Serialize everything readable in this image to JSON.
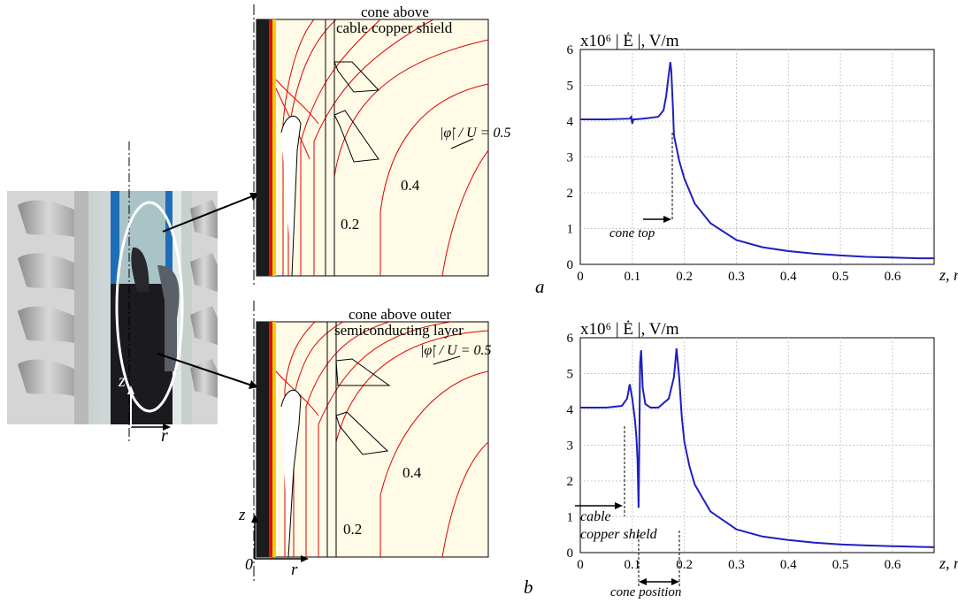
{
  "cable_photo": {
    "axis_z": "z",
    "axis_r": "r"
  },
  "field_plots": {
    "top": {
      "title_line1": "cone above",
      "title_line2": "cable copper shield",
      "phi_label": "|φ̇| / U = 0.5",
      "contour_04": "0.4",
      "contour_02": "0.2"
    },
    "bottom": {
      "title_line1": "cone above outer",
      "title_line2": "semiconducting layer",
      "phi_label": "|φ̇| / U = 0.5",
      "contour_04": "0.4",
      "contour_02": "0.2",
      "axis_z": "z",
      "axis_r": "r",
      "origin": "0"
    }
  },
  "panel_labels": {
    "a": "a",
    "b": "b"
  },
  "chart_data": [
    {
      "type": "line",
      "title": "x10⁶ | Ė |, V/m",
      "xlabel": "z, m",
      "xlim": [
        0,
        0.68
      ],
      "ylim": [
        0,
        6
      ],
      "xticks": [
        "0",
        "0.1",
        "0.2",
        "0.3",
        "0.4",
        "0.5",
        "0.6"
      ],
      "yticks": [
        "0",
        "1",
        "2",
        "3",
        "4",
        "5",
        "6"
      ],
      "grid": true,
      "color": "#1f1fbf",
      "annotations": [
        "cone top"
      ],
      "series": [
        {
          "x": [
            0,
            0.05,
            0.095,
            0.098,
            0.1,
            0.102,
            0.105,
            0.12,
            0.15,
            0.16,
            0.165,
            0.17,
            0.173,
            0.175,
            0.178,
            0.18,
            0.19,
            0.2,
            0.22,
            0.25,
            0.3,
            0.35,
            0.4,
            0.45,
            0.5,
            0.55,
            0.6,
            0.65,
            0.68
          ],
          "y": [
            4.05,
            4.05,
            4.07,
            4.12,
            3.93,
            4.05,
            4.05,
            4.07,
            4.12,
            4.3,
            4.7,
            5.3,
            5.65,
            5.4,
            4.4,
            3.6,
            2.9,
            2.4,
            1.7,
            1.15,
            0.68,
            0.48,
            0.37,
            0.3,
            0.25,
            0.21,
            0.19,
            0.17,
            0.17
          ]
        }
      ]
    },
    {
      "type": "line",
      "title": "x10⁶ | Ė |, V/m",
      "xlabel": "z, m",
      "xlim": [
        0,
        0.68
      ],
      "ylim": [
        0,
        6
      ],
      "xticks": [
        "0",
        "0.1",
        "0.2",
        "0.3",
        "0.4",
        "0.5",
        "0.6"
      ],
      "yticks": [
        "0",
        "1",
        "2",
        "3",
        "4",
        "5",
        "6"
      ],
      "grid": true,
      "color": "#1f1fbf",
      "annotations": [
        "cable",
        "copper shield",
        "cone position"
      ],
      "series": [
        {
          "x": [
            0,
            0.05,
            0.08,
            0.09,
            0.095,
            0.1,
            0.105,
            0.108,
            0.11,
            0.112,
            0.113,
            0.115,
            0.117,
            0.12,
            0.125,
            0.135,
            0.15,
            0.17,
            0.18,
            0.185,
            0.19,
            0.195,
            0.2,
            0.21,
            0.22,
            0.25,
            0.3,
            0.35,
            0.4,
            0.45,
            0.5,
            0.55,
            0.6,
            0.65,
            0.68
          ],
          "y": [
            4.05,
            4.05,
            4.1,
            4.3,
            4.7,
            4.3,
            3.7,
            3.2,
            2.6,
            1.25,
            2.5,
            5.3,
            5.65,
            4.6,
            4.15,
            4.05,
            4.05,
            4.3,
            4.9,
            5.7,
            4.9,
            3.8,
            3.1,
            2.4,
            1.9,
            1.15,
            0.65,
            0.45,
            0.35,
            0.28,
            0.23,
            0.2,
            0.18,
            0.16,
            0.15
          ]
        }
      ]
    }
  ]
}
